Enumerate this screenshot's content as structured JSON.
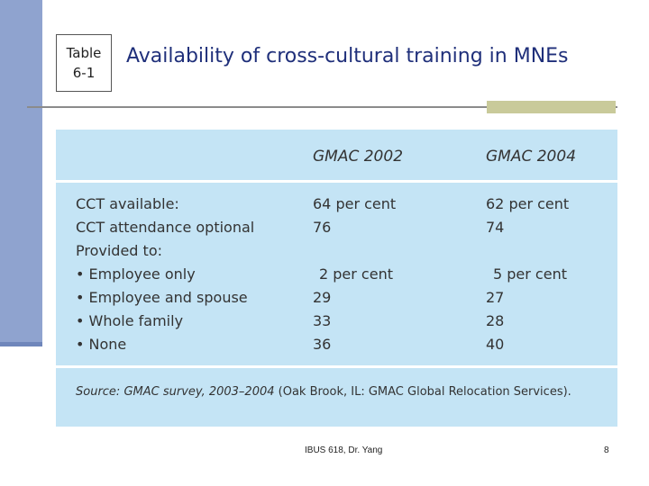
{
  "slide": {
    "table_label_line1": "Table",
    "table_label_line2": "6-1",
    "title": "Availability of cross-cultural training in MNEs",
    "accent_color": "#8fa3cf",
    "title_color": "#1f2f7a"
  },
  "table": {
    "columns": [
      "GMAC 2002",
      "GMAC 2004"
    ],
    "rows": [
      {
        "label": "CCT available:",
        "v2002": "64 per cent",
        "v2004": "62 per cent"
      },
      {
        "label": "CCT attendance optional",
        "v2002": "76",
        "v2004": "74"
      },
      {
        "label": "Provided to:",
        "v2002": "",
        "v2004": ""
      },
      {
        "label": "• Employee only",
        "v2002": "2 per cent",
        "v2004": "5 per cent"
      },
      {
        "label": "• Employee and spouse",
        "v2002": "29",
        "v2004": "27"
      },
      {
        "label": "• Whole family",
        "v2002": "33",
        "v2004": "28"
      },
      {
        "label": "• None",
        "v2002": "36",
        "v2004": "40"
      }
    ],
    "source_prefix": "Source: GMAC survey, 2003–2004",
    "source_suffix": " (Oak Brook, IL: GMAC Global Relocation Services).",
    "panel_color": "#c4e4f5"
  },
  "footer": {
    "center_text": "IBUS 618, Dr. Yang",
    "page_number": "8"
  }
}
